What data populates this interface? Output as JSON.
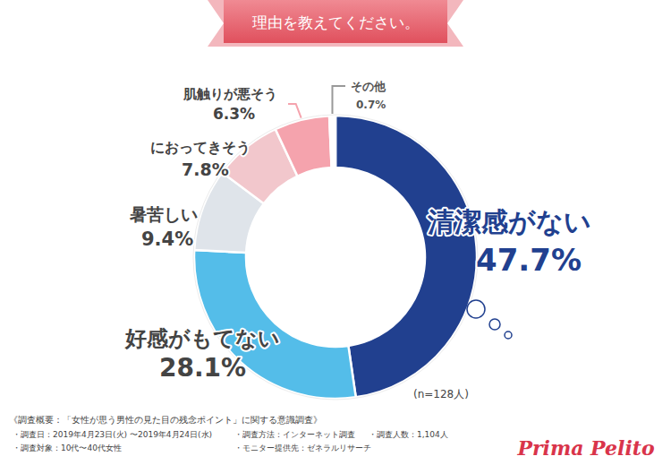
{
  "chart_data": {
    "type": "pie",
    "title": "理由を教えてください。",
    "categories": [
      "清潔感がない",
      "好感がもてない",
      "暑苦しい",
      "におってきそう",
      "肌触りが悪そう",
      "その他"
    ],
    "values": [
      47.7,
      28.1,
      9.4,
      7.8,
      6.3,
      0.7
    ],
    "value_labels": [
      "47.7%",
      "28.1%",
      "9.4%",
      "7.8%",
      "6.3%",
      "0.7%"
    ],
    "colors": [
      "#21408f",
      "#54bde9",
      "#dfe4ea",
      "#f2c7cc",
      "#f5a3ad",
      "#ffffff"
    ],
    "data_labels": true,
    "note": "(n=128人)",
    "footnotes": [
      "《調査概要：「女性が思う男性の見た目の残念ポイント」に関する意識調査》",
      "・調査日：2019年4月23日(火) 〜2019年4月24日(水)",
      "・調査方法：インターネット調査",
      "・調査人数：1,104人",
      "・調査対象：10代〜40代女性",
      "・モニター提供先：ゼネラルリサーチ"
    ],
    "brand": "Prima Pelito"
  }
}
